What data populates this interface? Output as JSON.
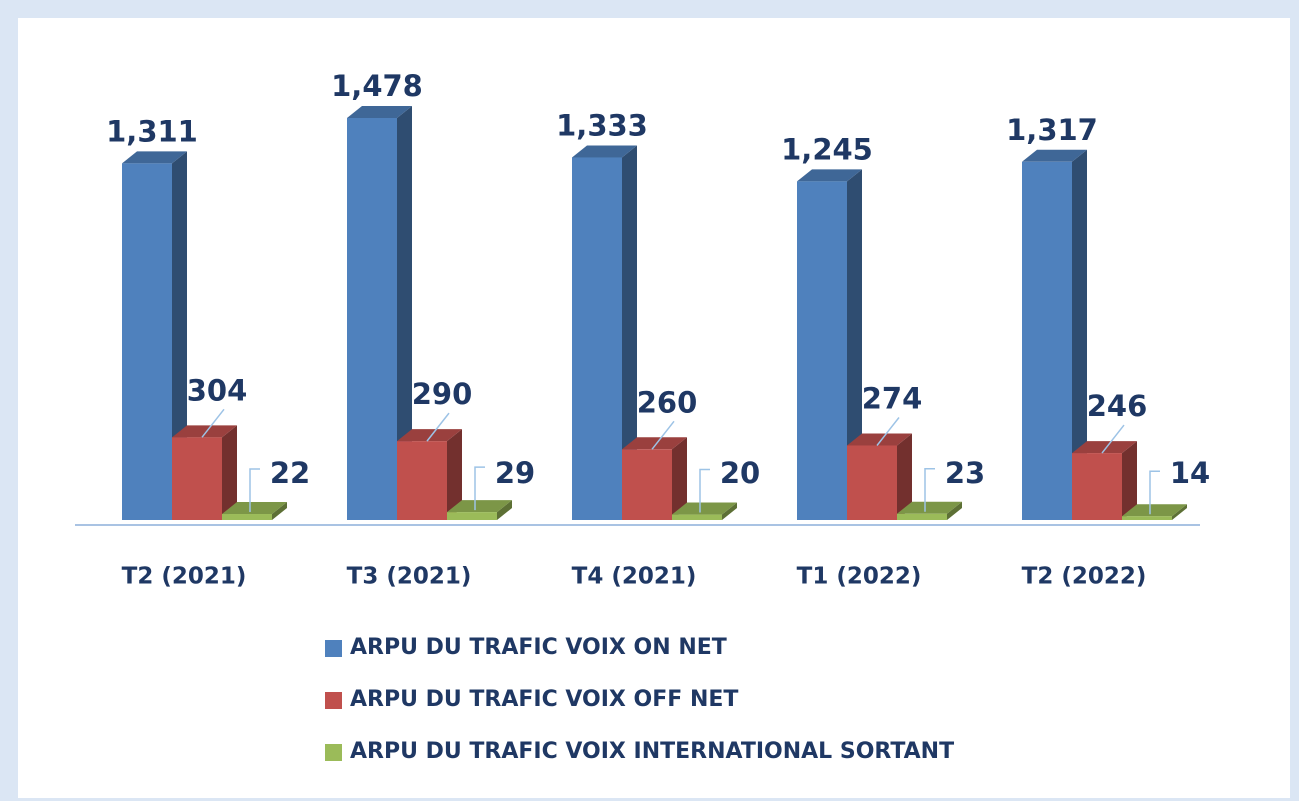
{
  "chart_data": {
    "type": "bar3d",
    "categories": [
      "T2 (2021)",
      "T3 (2021)",
      "T4 (2021)",
      "T1 (2022)",
      "T2 (2022)"
    ],
    "series": [
      {
        "name": "ARPU DU TRAFIC VOIX ON NET",
        "color": "#4f81bd",
        "values": [
          1311,
          1478,
          1333,
          1245,
          1317
        ],
        "value_labels": [
          "1,311",
          "1,478",
          "1,333",
          "1,245",
          "1,317"
        ]
      },
      {
        "name": "ARPU DU TRAFIC VOIX OFF NET",
        "color": "#c0504d",
        "values": [
          304,
          290,
          260,
          274,
          246
        ]
      },
      {
        "name": "ARPU DU TRAFIC VOIX INTERNATIONAL SORTANT",
        "color": "#9bbb59",
        "values": [
          22,
          29,
          20,
          23,
          14
        ]
      }
    ]
  }
}
